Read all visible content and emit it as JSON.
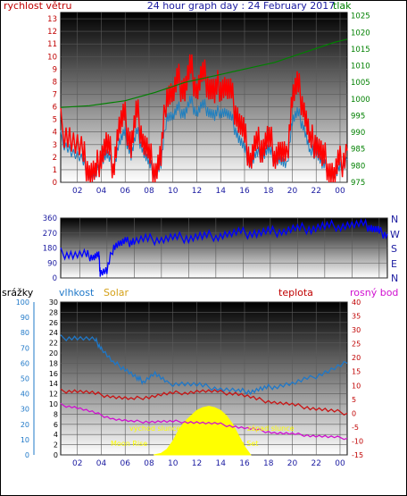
{
  "header": {
    "title": "24 hour graph day : 24 February 2017",
    "wind_label": "rychlost větru",
    "pressure_label": "tlak"
  },
  "direction": {
    "compass": [
      "N",
      "W",
      "S",
      "E",
      "N"
    ]
  },
  "lower": {
    "rain_label": "srážky",
    "humidity_label": "vlhkost",
    "solar_label": "Solar",
    "temp_label": "teplota",
    "dew_label": "rosný bod",
    "moon_rise": "Moon Rise",
    "sunrise": "východ slunce",
    "sunset": "západ slunce",
    "moon_set": "Moon Set"
  },
  "colors": {
    "wind": "#ff0000",
    "gust": "#1f7fbf",
    "pressure": "#008000",
    "direction": "#0000ff",
    "humidity": "#1f78c8",
    "temperature": "#c81414",
    "dew_point": "#d010d0",
    "solar": "#ffff00",
    "rain_axis": "#1f78c8",
    "solar_label": "#d4a017"
  },
  "chart_data": [
    {
      "type": "line",
      "x_ticks": [
        "02",
        "04",
        "06",
        "08",
        "10",
        "12",
        "14",
        "16",
        "18",
        "20",
        "22",
        "00"
      ],
      "y_left_ticks": [
        "0",
        "1",
        "2",
        "3",
        "4",
        "5",
        "6",
        "7",
        "8",
        "9",
        "10",
        "11",
        "12",
        "13"
      ],
      "y_right_ticks": [
        "975",
        "980",
        "985",
        "990",
        "995",
        "1000",
        "1005",
        "1010",
        "1015",
        "1020",
        "1025"
      ],
      "ylim_left": [
        0,
        13.5
      ],
      "ylim_right": [
        975,
        1026
      ],
      "x_range_hours": [
        0.6,
        24.6
      ],
      "series": [
        {
          "key": "wind",
          "axis": "left",
          "x": [
            0.6,
            1.5,
            2.5,
            3.0,
            3.5,
            4.0,
            4.5,
            5.0,
            5.5,
            6.0,
            6.5,
            7.0,
            7.5,
            8.0,
            8.5,
            9.0,
            9.5,
            10.0,
            10.5,
            11.0,
            11.5,
            12.0,
            12.5,
            13.0,
            13.5,
            14.0,
            14.5,
            15.0,
            15.5,
            16.0,
            16.5,
            17.0,
            17.5,
            18.0,
            18.5,
            19.0,
            19.5,
            20.0,
            20.5,
            21.0,
            21.5,
            22.0,
            22.5,
            23.0,
            23.5,
            24.0,
            24.6
          ],
          "y": [
            4.5,
            3.5,
            2.0,
            1.0,
            0.5,
            2.5,
            3.0,
            1.5,
            4.5,
            5.0,
            3.0,
            5.5,
            3.5,
            2.0,
            1.0,
            2.0,
            7.5,
            7.0,
            8.0,
            7.5,
            9.0,
            7.5,
            8.5,
            8.0,
            7.0,
            8.0,
            7.5,
            6.5,
            5.0,
            3.5,
            2.0,
            3.0,
            3.0,
            3.5,
            2.5,
            2.5,
            1.5,
            7.0,
            7.5,
            6.0,
            3.0,
            3.5,
            2.0,
            1.5,
            0.5,
            1.5,
            2.5
          ]
        },
        {
          "key": "gust",
          "axis": "left",
          "x": [
            0.6,
            1.5,
            2.5,
            3.0,
            3.5,
            4.0,
            4.5,
            5.0,
            5.5,
            6.0,
            6.5,
            7.0,
            7.5,
            8.0,
            8.5,
            9.0,
            9.5,
            10.0,
            10.5,
            11.0,
            11.5,
            12.0,
            12.5,
            13.0,
            13.5,
            14.0,
            14.5,
            15.0,
            15.5,
            16.0,
            16.5,
            17.0,
            17.5,
            18.0,
            18.5,
            19.0,
            19.5,
            20.0,
            20.5,
            21.0,
            21.5,
            22.0,
            22.5,
            23.0,
            23.5,
            24.0,
            24.6
          ],
          "y": [
            3.5,
            2.5,
            1.5,
            0.5,
            0.3,
            1.8,
            2.2,
            1.0,
            3.2,
            3.8,
            2.2,
            4.0,
            2.6,
            1.4,
            0.6,
            1.4,
            5.5,
            5.2,
            5.8,
            5.5,
            6.4,
            5.6,
            6.1,
            5.8,
            5.2,
            5.8,
            5.5,
            4.8,
            3.6,
            2.5,
            1.4,
            2.2,
            2.2,
            2.6,
            1.8,
            1.8,
            1.0,
            5.0,
            5.4,
            4.4,
            2.2,
            2.6,
            1.4,
            1.0,
            0.3,
            1.0,
            1.8
          ]
        },
        {
          "key": "pressure",
          "axis": "right",
          "x": [
            0.6,
            3.0,
            6.0,
            8.5,
            11.0,
            13.5,
            16.0,
            18.5,
            21.0,
            23.5,
            24.6
          ],
          "y": [
            997.5,
            998,
            999.5,
            1002,
            1005,
            1007,
            1009,
            1011,
            1014,
            1017,
            1018
          ]
        }
      ]
    },
    {
      "type": "line",
      "y_ticks": [
        "0",
        "90",
        "180",
        "270",
        "360"
      ],
      "ylim": [
        0,
        360
      ],
      "series": [
        {
          "key": "direction",
          "x": [
            0.6,
            1.5,
            2.5,
            3.0,
            3.4,
            3.5,
            4.0,
            4.5,
            5.0,
            5.5,
            6.0,
            7.0,
            8.0,
            9.0,
            10.0,
            11.0,
            12.0,
            13.0,
            14.0,
            15.0,
            16.0,
            17.0,
            18.0,
            19.0,
            20.0,
            21.0,
            22.0,
            23.0,
            23.5,
            24.0,
            24.6
          ],
          "y": [
            150,
            140,
            135,
            130,
            135,
            40,
            40,
            200,
            210,
            215,
            225,
            230,
            235,
            240,
            245,
            250,
            255,
            265,
            270,
            270,
            275,
            285,
            295,
            300,
            310,
            315,
            320,
            315,
            300,
            275,
            265
          ]
        }
      ]
    },
    {
      "type": "line",
      "y_rain_ticks": [
        "0",
        "10",
        "20",
        "30",
        "40",
        "50",
        "60",
        "70",
        "80",
        "90",
        "100"
      ],
      "y_hum_ticks": [
        "0",
        "2",
        "4",
        "6",
        "8",
        "10",
        "12",
        "14",
        "16",
        "18",
        "20",
        "22",
        "24",
        "26",
        "28",
        "30"
      ],
      "y_temp_ticks": [
        "-15",
        "-10",
        "-5",
        "0",
        "5",
        "10",
        "15",
        "20",
        "25",
        "30",
        "35",
        "40"
      ],
      "ylim_humidity": [
        0,
        30
      ],
      "ylim_temp": [
        -15,
        40
      ],
      "series": [
        {
          "key": "humidity",
          "axis": "humidity",
          "x": [
            0.6,
            2.0,
            3.5,
            4.0,
            5.0,
            6.0,
            7.0,
            7.5,
            8.5,
            9.5,
            11.0,
            12.5,
            14.0,
            15.5,
            16.5,
            17.5,
            18.5,
            20.0,
            21.5,
            23.0,
            24.6
          ],
          "y": [
            23,
            23,
            22.5,
            21,
            18,
            17,
            15,
            14.5,
            16,
            14,
            14,
            13.5,
            13,
            12.5,
            12.5,
            13,
            13.5,
            14,
            15,
            16.5,
            18
          ]
        },
        {
          "key": "temperature",
          "axis": "temp",
          "x": [
            0.6,
            2.0,
            3.5,
            5.0,
            6.5,
            8.0,
            9.5,
            11.0,
            12.5,
            14.0,
            15.5,
            17.0,
            18.5,
            20.0,
            21.5,
            23.0,
            24.6
          ],
          "y": [
            8,
            8,
            7,
            6,
            5,
            6,
            7,
            7.5,
            8,
            7.5,
            7,
            5,
            4,
            3,
            2,
            1,
            0
          ]
        },
        {
          "key": "dew_point",
          "axis": "temp",
          "x": [
            0.6,
            2.0,
            3.5,
            5.0,
            6.5,
            8.0,
            9.5,
            11.0,
            12.5,
            14.0,
            15.5,
            17.0,
            18.5,
            20.0,
            21.5,
            23.0,
            24.6
          ],
          "y": [
            3,
            2,
            0,
            -2,
            -3,
            -3,
            -3,
            -3,
            -3.5,
            -4,
            -5,
            -6,
            -7,
            -7.5,
            -8,
            -8.5,
            -9
          ]
        },
        {
          "key": "solar",
          "axis": "temp",
          "x": [
            8.4,
            9.0,
            9.5,
            10.0,
            10.5,
            11.0,
            11.5,
            12.0,
            12.5,
            13.0,
            13.5,
            14.0,
            14.5,
            15.0,
            15.5,
            16.0,
            16.5
          ],
          "y": [
            -15,
            -14.5,
            -13,
            -10,
            -6,
            -3,
            -1,
            1,
            2,
            2.5,
            2,
            1,
            -1,
            -4,
            -8,
            -12,
            -15
          ]
        }
      ]
    }
  ]
}
